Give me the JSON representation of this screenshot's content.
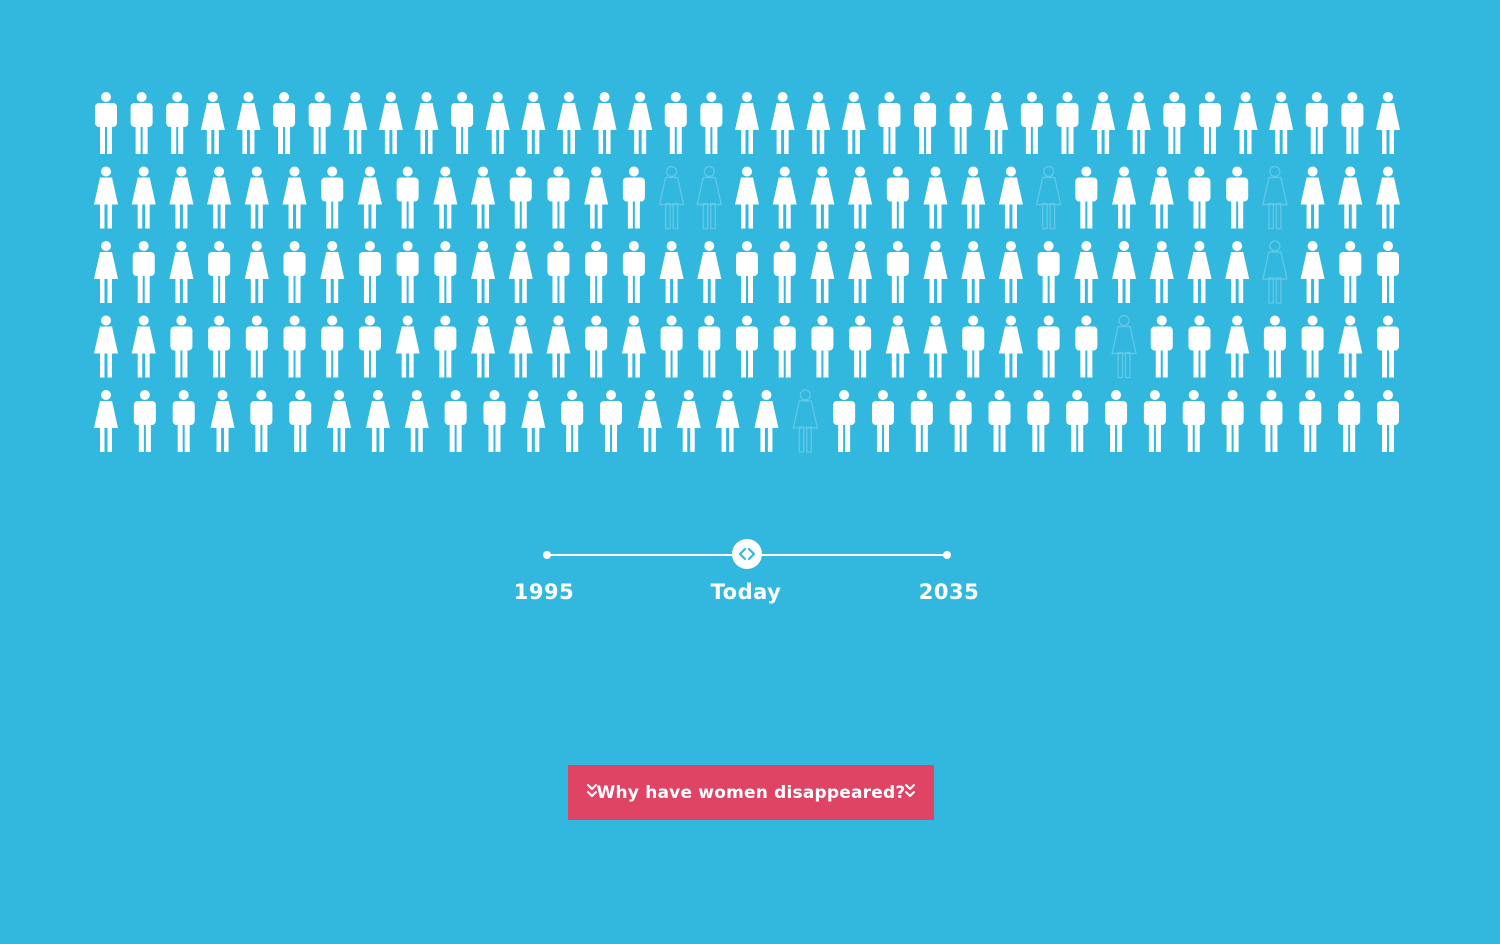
{
  "colors": {
    "background": "#32b8df",
    "figure": "#ffffff",
    "figure_missing_outline": "#63c9e6",
    "cta": "#e04464"
  },
  "pictogram": {
    "rows": [
      "MMMFFMMFFFMFFFFFMMFFFFMMMFMMFFMMFFMMF",
      "FFFFFFMFMFFMMFMXXFFFFMFFFXMFFMMXFFF",
      "FMFMFMFMMMFFMMMFFMMFFMFFFMFFFFFXFMM",
      "FFMMMMMMFMFFFMFMMMMMMFFMFMMXMMFMMFM",
      "FMMFMMFFFMMFMMFFFFXMMMMMMMMMMMMMMM"
    ],
    "legend_codes": {
      "M": "man-icon",
      "F": "woman-icon",
      "X": "missing-woman-icon"
    }
  },
  "timeline": {
    "labels": [
      "1995",
      "Today",
      "2035"
    ],
    "selected_index": 1,
    "handle_icon": "left-right-arrows-icon"
  },
  "cta": {
    "label": "Why have women disappeared?",
    "icon": "double-chevron-down-icon"
  }
}
